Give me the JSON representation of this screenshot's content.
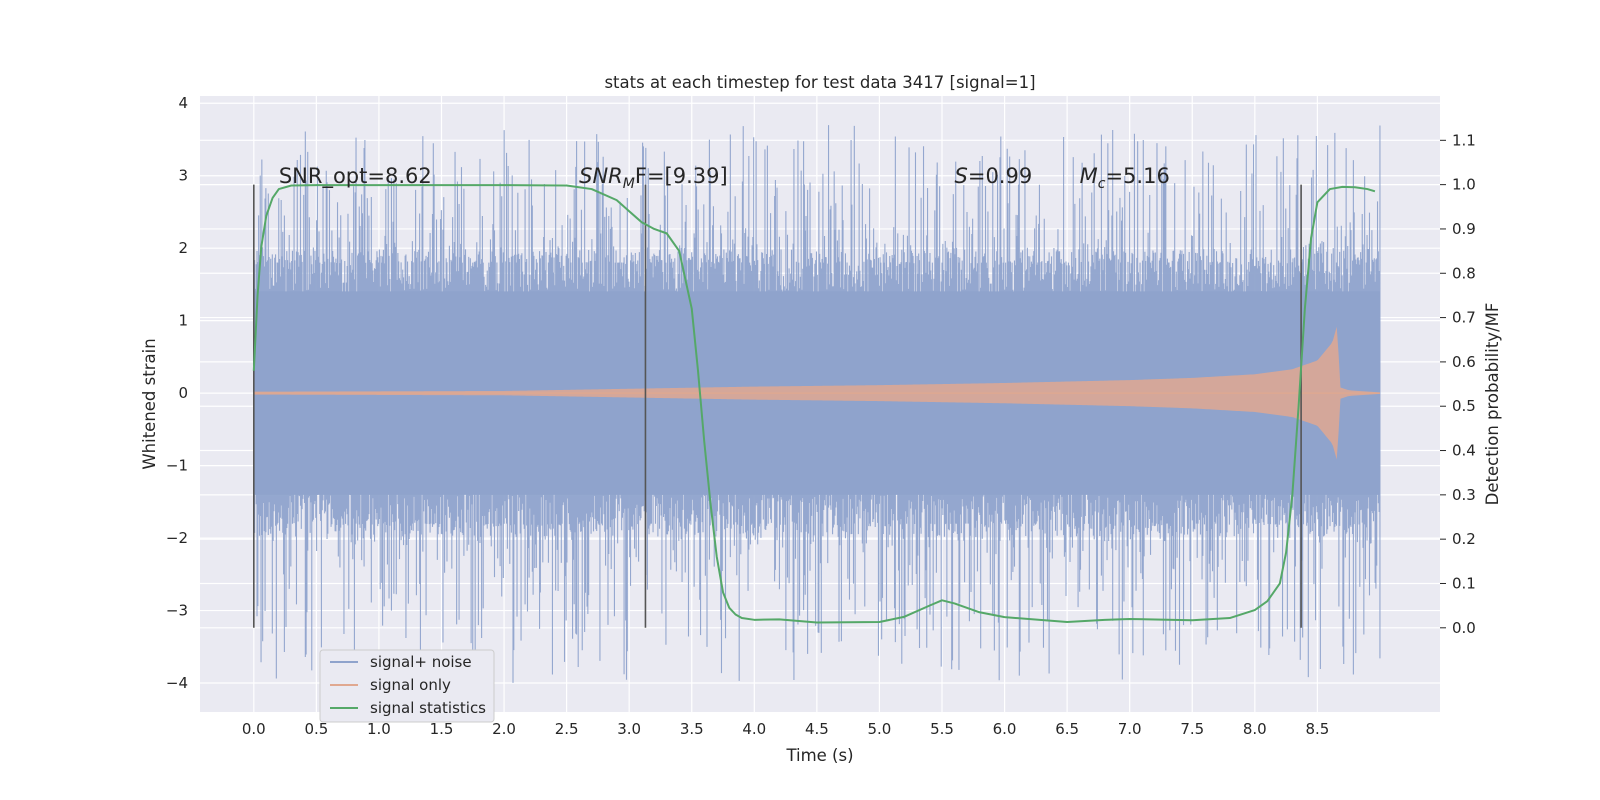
{
  "chart_data": {
    "type": "line",
    "title": "stats at each timestep for test data 3417 [signal=1]",
    "xlabel": "Time (s)",
    "ylabel": "Whitened strain",
    "y2label": "Detection probability/MF",
    "xlim": [
      -0.43,
      9.48
    ],
    "ylim": [
      -4.4,
      4.1
    ],
    "y2lim": [
      -0.19,
      1.2
    ],
    "x_ticks": [
      0.0,
      0.5,
      1.0,
      1.5,
      2.0,
      2.5,
      3.0,
      3.5,
      4.0,
      4.5,
      5.0,
      5.5,
      6.0,
      6.5,
      7.0,
      7.5,
      8.0,
      8.5
    ],
    "x_tick_labels": [
      "0.0",
      "0.5",
      "1.0",
      "1.5",
      "2.0",
      "2.5",
      "3.0",
      "3.5",
      "4.0",
      "4.5",
      "5.0",
      "5.5",
      "6.0",
      "6.5",
      "7.0",
      "7.5",
      "8.0",
      "8.5"
    ],
    "y_ticks": [
      -4,
      -3,
      -2,
      -1,
      0,
      1,
      2,
      3,
      4
    ],
    "y_tick_labels": [
      "−4",
      "−3",
      "−2",
      "−1",
      "0",
      "1",
      "2",
      "3",
      "4"
    ],
    "y2_ticks": [
      0.0,
      0.1,
      0.2,
      0.3,
      0.4,
      0.5,
      0.6,
      0.7,
      0.8,
      0.9,
      1.0,
      1.1
    ],
    "y2_tick_labels": [
      "0.0",
      "0.1",
      "0.2",
      "0.3",
      "0.4",
      "0.5",
      "0.6",
      "0.7",
      "0.8",
      "0.9",
      "1.0",
      "1.1"
    ],
    "grid": true,
    "legend": {
      "placement": "lower-left",
      "entries": [
        {
          "label": "signal+ noise",
          "color": "#8fa3cc"
        },
        {
          "label": "signal only",
          "color": "#e0a890"
        },
        {
          "label": "signal statistics",
          "color": "#55a868"
        }
      ]
    },
    "annotations": [
      {
        "text": "SNR_opt=8.62",
        "x": 0.2,
        "y": 2.9
      },
      {
        "text_main": "SNR",
        "text_sub": "M",
        "text_main2": "F=[9.39]",
        "x": 2.6,
        "y": 2.9
      },
      {
        "text_main": "S",
        "text_rest": "=0.99",
        "x": 5.6,
        "y": 2.9
      },
      {
        "text_main": "M",
        "text_sub": "c",
        "text_rest": "=5.16",
        "x": 6.6,
        "y": 2.9
      }
    ],
    "vertical_markers": {
      "x": [
        0.0,
        3.13,
        8.37
      ],
      "y2_range": [
        0.0,
        1.0
      ],
      "color": "#555555"
    },
    "series": [
      {
        "name": "signal+ noise",
        "color": "#8fa3cc",
        "kind": "noise",
        "x_range": [
          0.0,
          9.0
        ],
        "core_amplitude": 1.8,
        "peak_max": 3.7,
        "peak_min": -4.0
      },
      {
        "name": "signal only",
        "color": "#e0a890",
        "kind": "chirp",
        "x_range": [
          0.0,
          9.0
        ],
        "merger_time": 8.66,
        "amplitude_envelope": [
          [
            0.0,
            0.02
          ],
          [
            2.0,
            0.03
          ],
          [
            3.0,
            0.06
          ],
          [
            4.0,
            0.09
          ],
          [
            5.0,
            0.11
          ],
          [
            6.0,
            0.14
          ],
          [
            7.0,
            0.18
          ],
          [
            7.5,
            0.21
          ],
          [
            8.0,
            0.26
          ],
          [
            8.3,
            0.33
          ],
          [
            8.5,
            0.45
          ],
          [
            8.62,
            0.7
          ],
          [
            8.66,
            0.95
          ],
          [
            8.68,
            0.08
          ],
          [
            8.75,
            0.04
          ],
          [
            9.0,
            0.01
          ]
        ]
      },
      {
        "name": "signal statistics",
        "color": "#55a868",
        "kind": "probability",
        "axis": "right",
        "x": [
          0.0,
          0.03,
          0.06,
          0.1,
          0.15,
          0.2,
          0.3,
          0.5,
          1.0,
          1.5,
          2.0,
          2.5,
          2.7,
          2.9,
          3.0,
          3.1,
          3.2,
          3.3,
          3.4,
          3.5,
          3.55,
          3.6,
          3.65,
          3.7,
          3.75,
          3.8,
          3.85,
          3.9,
          4.0,
          4.2,
          4.5,
          5.0,
          5.2,
          5.4,
          5.5,
          5.6,
          5.8,
          6.0,
          6.5,
          6.8,
          7.0,
          7.5,
          7.8,
          8.0,
          8.1,
          8.2,
          8.25,
          8.3,
          8.35,
          8.4,
          8.45,
          8.5,
          8.6,
          8.7,
          8.8,
          8.9,
          8.96
        ],
        "values": [
          0.58,
          0.75,
          0.86,
          0.93,
          0.97,
          0.99,
          0.998,
          0.999,
          0.999,
          0.999,
          0.999,
          0.998,
          0.99,
          0.965,
          0.94,
          0.915,
          0.9,
          0.89,
          0.85,
          0.72,
          0.58,
          0.42,
          0.28,
          0.16,
          0.08,
          0.045,
          0.03,
          0.022,
          0.018,
          0.019,
          0.012,
          0.013,
          0.025,
          0.05,
          0.062,
          0.055,
          0.035,
          0.024,
          0.013,
          0.018,
          0.02,
          0.017,
          0.022,
          0.04,
          0.06,
          0.1,
          0.17,
          0.3,
          0.5,
          0.72,
          0.88,
          0.96,
          0.99,
          0.995,
          0.994,
          0.99,
          0.985
        ]
      }
    ]
  }
}
